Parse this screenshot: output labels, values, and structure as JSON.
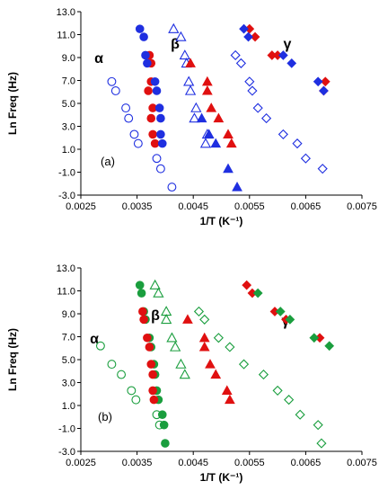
{
  "chart_data": [
    {
      "panel_label": "(a)",
      "type": "scatter",
      "xlabel": "1/T (K⁻¹)",
      "ylabel": "Ln Freq (Hz)",
      "xlim": [
        0.0025,
        0.0075
      ],
      "ylim": [
        -3.0,
        13.0
      ],
      "xticks": [
        "0.0025",
        "0.0035",
        "0.0045",
        "0.0055",
        "0.0065",
        "0.0075"
      ],
      "yticks": [
        "-3.0",
        "-1.0",
        "1.0",
        "3.0",
        "5.0",
        "7.0",
        "9.0",
        "11.0",
        "13.0"
      ],
      "grid": false,
      "annotations": [
        "α",
        "β",
        "γ"
      ],
      "colors": {
        "blue": "#1f2fe0",
        "red": "#e01010"
      },
      "series": [
        {
          "marker": "circle",
          "fill": "open",
          "color": "#1f2fe0",
          "points": [
            [
              0.00305,
              6.9
            ],
            [
              0.00312,
              6.1
            ],
            [
              0.0033,
              4.6
            ],
            [
              0.00335,
              3.7
            ],
            [
              0.00345,
              2.3
            ],
            [
              0.00352,
              1.5
            ],
            [
              0.00385,
              0.2
            ],
            [
              0.00392,
              -0.7
            ],
            [
              0.00412,
              -2.3
            ]
          ]
        },
        {
          "marker": "circle",
          "fill": "filled",
          "color": "#e01010",
          "points": [
            [
              0.00372,
              9.2
            ],
            [
              0.00375,
              8.5
            ],
            [
              0.00375,
              6.9
            ],
            [
              0.0037,
              6.1
            ],
            [
              0.00378,
              4.6
            ],
            [
              0.00375,
              3.7
            ],
            [
              0.00378,
              2.3
            ],
            [
              0.00382,
              1.5
            ]
          ]
        },
        {
          "marker": "circle",
          "fill": "filled",
          "color": "#1f2fe0",
          "points": [
            [
              0.00355,
              11.5
            ],
            [
              0.00362,
              10.8
            ],
            [
              0.00365,
              9.2
            ],
            [
              0.00368,
              8.5
            ],
            [
              0.00382,
              6.9
            ],
            [
              0.00385,
              6.1
            ],
            [
              0.0039,
              4.6
            ],
            [
              0.00392,
              3.7
            ],
            [
              0.00392,
              2.3
            ],
            [
              0.00395,
              1.5
            ]
          ]
        },
        {
          "marker": "triangle",
          "fill": "open",
          "color": "#1f2fe0",
          "points": [
            [
              0.00415,
              11.5
            ],
            [
              0.00428,
              10.8
            ],
            [
              0.00435,
              9.2
            ],
            [
              0.00438,
              8.5
            ],
            [
              0.00442,
              6.9
            ],
            [
              0.00445,
              6.1
            ],
            [
              0.00455,
              4.6
            ],
            [
              0.00452,
              3.7
            ],
            [
              0.00475,
              2.3
            ],
            [
              0.00472,
              1.5
            ]
          ]
        },
        {
          "marker": "triangle",
          "fill": "filled",
          "color": "#e01010",
          "points": [
            [
              0.00445,
              8.5
            ],
            [
              0.00475,
              6.9
            ],
            [
              0.00475,
              6.1
            ],
            [
              0.00482,
              4.6
            ],
            [
              0.00495,
              3.7
            ],
            [
              0.00512,
              2.3
            ],
            [
              0.00518,
              1.5
            ]
          ]
        },
        {
          "marker": "triangle",
          "fill": "filled",
          "color": "#1f2fe0",
          "points": [
            [
              0.00465,
              3.7
            ],
            [
              0.00478,
              2.3
            ],
            [
              0.0049,
              1.5
            ],
            [
              0.00512,
              -0.7
            ],
            [
              0.00528,
              -2.3
            ]
          ]
        },
        {
          "marker": "diamond",
          "fill": "open",
          "color": "#1f2fe0",
          "points": [
            [
              0.00525,
              9.2
            ],
            [
              0.00535,
              8.5
            ],
            [
              0.0055,
              6.9
            ],
            [
              0.00555,
              6.1
            ],
            [
              0.00565,
              4.6
            ],
            [
              0.0058,
              3.7
            ],
            [
              0.0061,
              2.3
            ],
            [
              0.00635,
              1.5
            ],
            [
              0.0065,
              0.2
            ],
            [
              0.0068,
              -0.7
            ]
          ]
        },
        {
          "marker": "diamond",
          "fill": "filled",
          "color": "#e01010",
          "points": [
            [
              0.0055,
              11.5
            ],
            [
              0.0056,
              10.8
            ],
            [
              0.0059,
              9.2
            ],
            [
              0.006,
              9.2
            ],
            [
              0.00685,
              6.9
            ],
            [
              0.00682,
              6.1
            ]
          ]
        },
        {
          "marker": "diamond",
          "fill": "filled",
          "color": "#1f2fe0",
          "points": [
            [
              0.0054,
              11.5
            ],
            [
              0.00548,
              10.8
            ],
            [
              0.0061,
              9.2
            ],
            [
              0.00625,
              8.5
            ],
            [
              0.00672,
              6.9
            ],
            [
              0.00682,
              6.1
            ]
          ]
        }
      ]
    },
    {
      "panel_label": "(b)",
      "type": "scatter",
      "xlabel": "1/T (K⁻¹)",
      "ylabel": "Ln Freq (Hz)",
      "xlim": [
        0.0025,
        0.0075
      ],
      "ylim": [
        -3.0,
        13.0
      ],
      "xticks": [
        "0.0025",
        "0.0035",
        "0.0045",
        "0.0055",
        "0.0065",
        "0.0075"
      ],
      "yticks": [
        "-3.0",
        "-1.0",
        "1.0",
        "3.0",
        "5.0",
        "7.0",
        "9.0",
        "11.0",
        "13.0"
      ],
      "grid": false,
      "annotations": [
        "α",
        "β",
        "γ"
      ],
      "colors": {
        "green": "#1a9e3e",
        "red": "#e01010"
      },
      "series": [
        {
          "marker": "circle",
          "fill": "open",
          "color": "#1a9e3e",
          "points": [
            [
              0.00285,
              6.2
            ],
            [
              0.00305,
              4.6
            ],
            [
              0.00322,
              3.7
            ],
            [
              0.0034,
              2.3
            ],
            [
              0.00348,
              1.5
            ],
            [
              0.00385,
              0.2
            ],
            [
              0.0039,
              -0.7
            ]
          ]
        },
        {
          "marker": "circle",
          "fill": "filled",
          "color": "#1a9e3e",
          "points": [
            [
              0.00355,
              11.5
            ],
            [
              0.00358,
              10.8
            ],
            [
              0.00362,
              9.2
            ],
            [
              0.00365,
              8.5
            ],
            [
              0.00372,
              6.9
            ],
            [
              0.00375,
              6.1
            ],
            [
              0.0038,
              4.6
            ],
            [
              0.00382,
              3.7
            ],
            [
              0.00385,
              2.3
            ],
            [
              0.00388,
              1.5
            ],
            [
              0.00395,
              0.2
            ],
            [
              0.00398,
              -0.7
            ],
            [
              0.004,
              -2.3
            ]
          ]
        },
        {
          "marker": "circle",
          "fill": "filled",
          "color": "#e01010",
          "points": [
            [
              0.0036,
              9.2
            ],
            [
              0.00362,
              8.5
            ],
            [
              0.00368,
              6.9
            ],
            [
              0.00372,
              6.1
            ],
            [
              0.00375,
              4.6
            ],
            [
              0.00378,
              3.7
            ],
            [
              0.00378,
              2.3
            ],
            [
              0.0038,
              1.5
            ]
          ]
        },
        {
          "marker": "triangle",
          "fill": "open",
          "color": "#1a9e3e",
          "points": [
            [
              0.00382,
              11.5
            ],
            [
              0.00388,
              10.8
            ],
            [
              0.00402,
              9.2
            ],
            [
              0.00402,
              8.5
            ],
            [
              0.00412,
              6.9
            ],
            [
              0.00418,
              6.1
            ],
            [
              0.00428,
              4.6
            ],
            [
              0.00435,
              3.7
            ]
          ]
        },
        {
          "marker": "triangle",
          "fill": "filled",
          "color": "#e01010",
          "points": [
            [
              0.0044,
              8.5
            ],
            [
              0.0047,
              6.9
            ],
            [
              0.0047,
              6.1
            ],
            [
              0.0048,
              4.6
            ],
            [
              0.0049,
              3.7
            ],
            [
              0.0051,
              2.3
            ],
            [
              0.00515,
              1.5
            ]
          ]
        },
        {
          "marker": "diamond",
          "fill": "open",
          "color": "#1a9e3e",
          "points": [
            [
              0.0046,
              9.2
            ],
            [
              0.0047,
              8.5
            ],
            [
              0.00495,
              6.9
            ],
            [
              0.00515,
              6.1
            ],
            [
              0.0054,
              4.6
            ],
            [
              0.00575,
              3.7
            ],
            [
              0.006,
              2.3
            ],
            [
              0.0062,
              1.5
            ],
            [
              0.0064,
              0.2
            ],
            [
              0.00672,
              -0.7
            ],
            [
              0.00678,
              -2.3
            ]
          ]
        },
        {
          "marker": "diamond",
          "fill": "filled",
          "color": "#e01010",
          "points": [
            [
              0.00545,
              11.5
            ],
            [
              0.00555,
              10.8
            ],
            [
              0.00595,
              9.2
            ],
            [
              0.00615,
              8.5
            ],
            [
              0.00675,
              6.9
            ]
          ]
        },
        {
          "marker": "diamond",
          "fill": "filled",
          "color": "#1a9e3e",
          "points": [
            [
              0.00565,
              10.8
            ],
            [
              0.00605,
              9.2
            ],
            [
              0.00622,
              8.5
            ],
            [
              0.00665,
              6.9
            ],
            [
              0.00692,
              6.2
            ]
          ]
        }
      ]
    }
  ]
}
